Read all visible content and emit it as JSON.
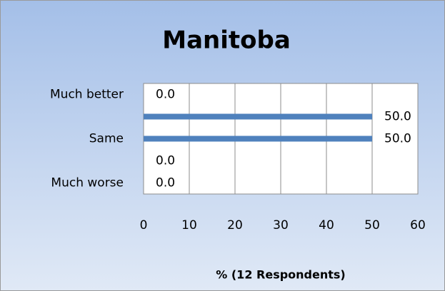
{
  "chart_data": {
    "type": "hbar",
    "title": "Manitoba",
    "x_label": "% (12 Respondents)",
    "categories": [
      "Much better",
      null,
      "Same",
      null,
      "Much worse"
    ],
    "values": [
      0.0,
      50.0,
      50.0,
      0.0,
      0.0
    ],
    "value_labels": [
      "0.0",
      "50.0",
      "50.0",
      "0.0",
      "0.0"
    ],
    "color": "#4f81bd",
    "xlim": [
      0,
      60
    ],
    "xticks": [
      0,
      10,
      20,
      30,
      40,
      50,
      60
    ],
    "grid": true
  }
}
